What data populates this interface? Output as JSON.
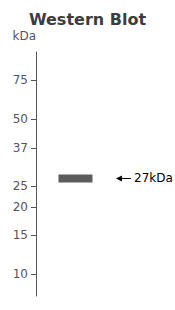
{
  "chart_data": {
    "type": "band",
    "title": "Western Blot",
    "categories": [
      null
    ],
    "values": [
      27
    ],
    "color": "#4a4a4a",
    "log": "y",
    "ylim": [
      8,
      100
    ],
    "yticks": [
      10,
      15,
      20,
      25,
      37,
      50,
      75
    ],
    "ylabel": "kDa",
    "tick_labels": "y",
    "grid": false,
    "annotations": [
      {
        "text": "27kDa",
        "y": 27
      }
    ]
  }
}
